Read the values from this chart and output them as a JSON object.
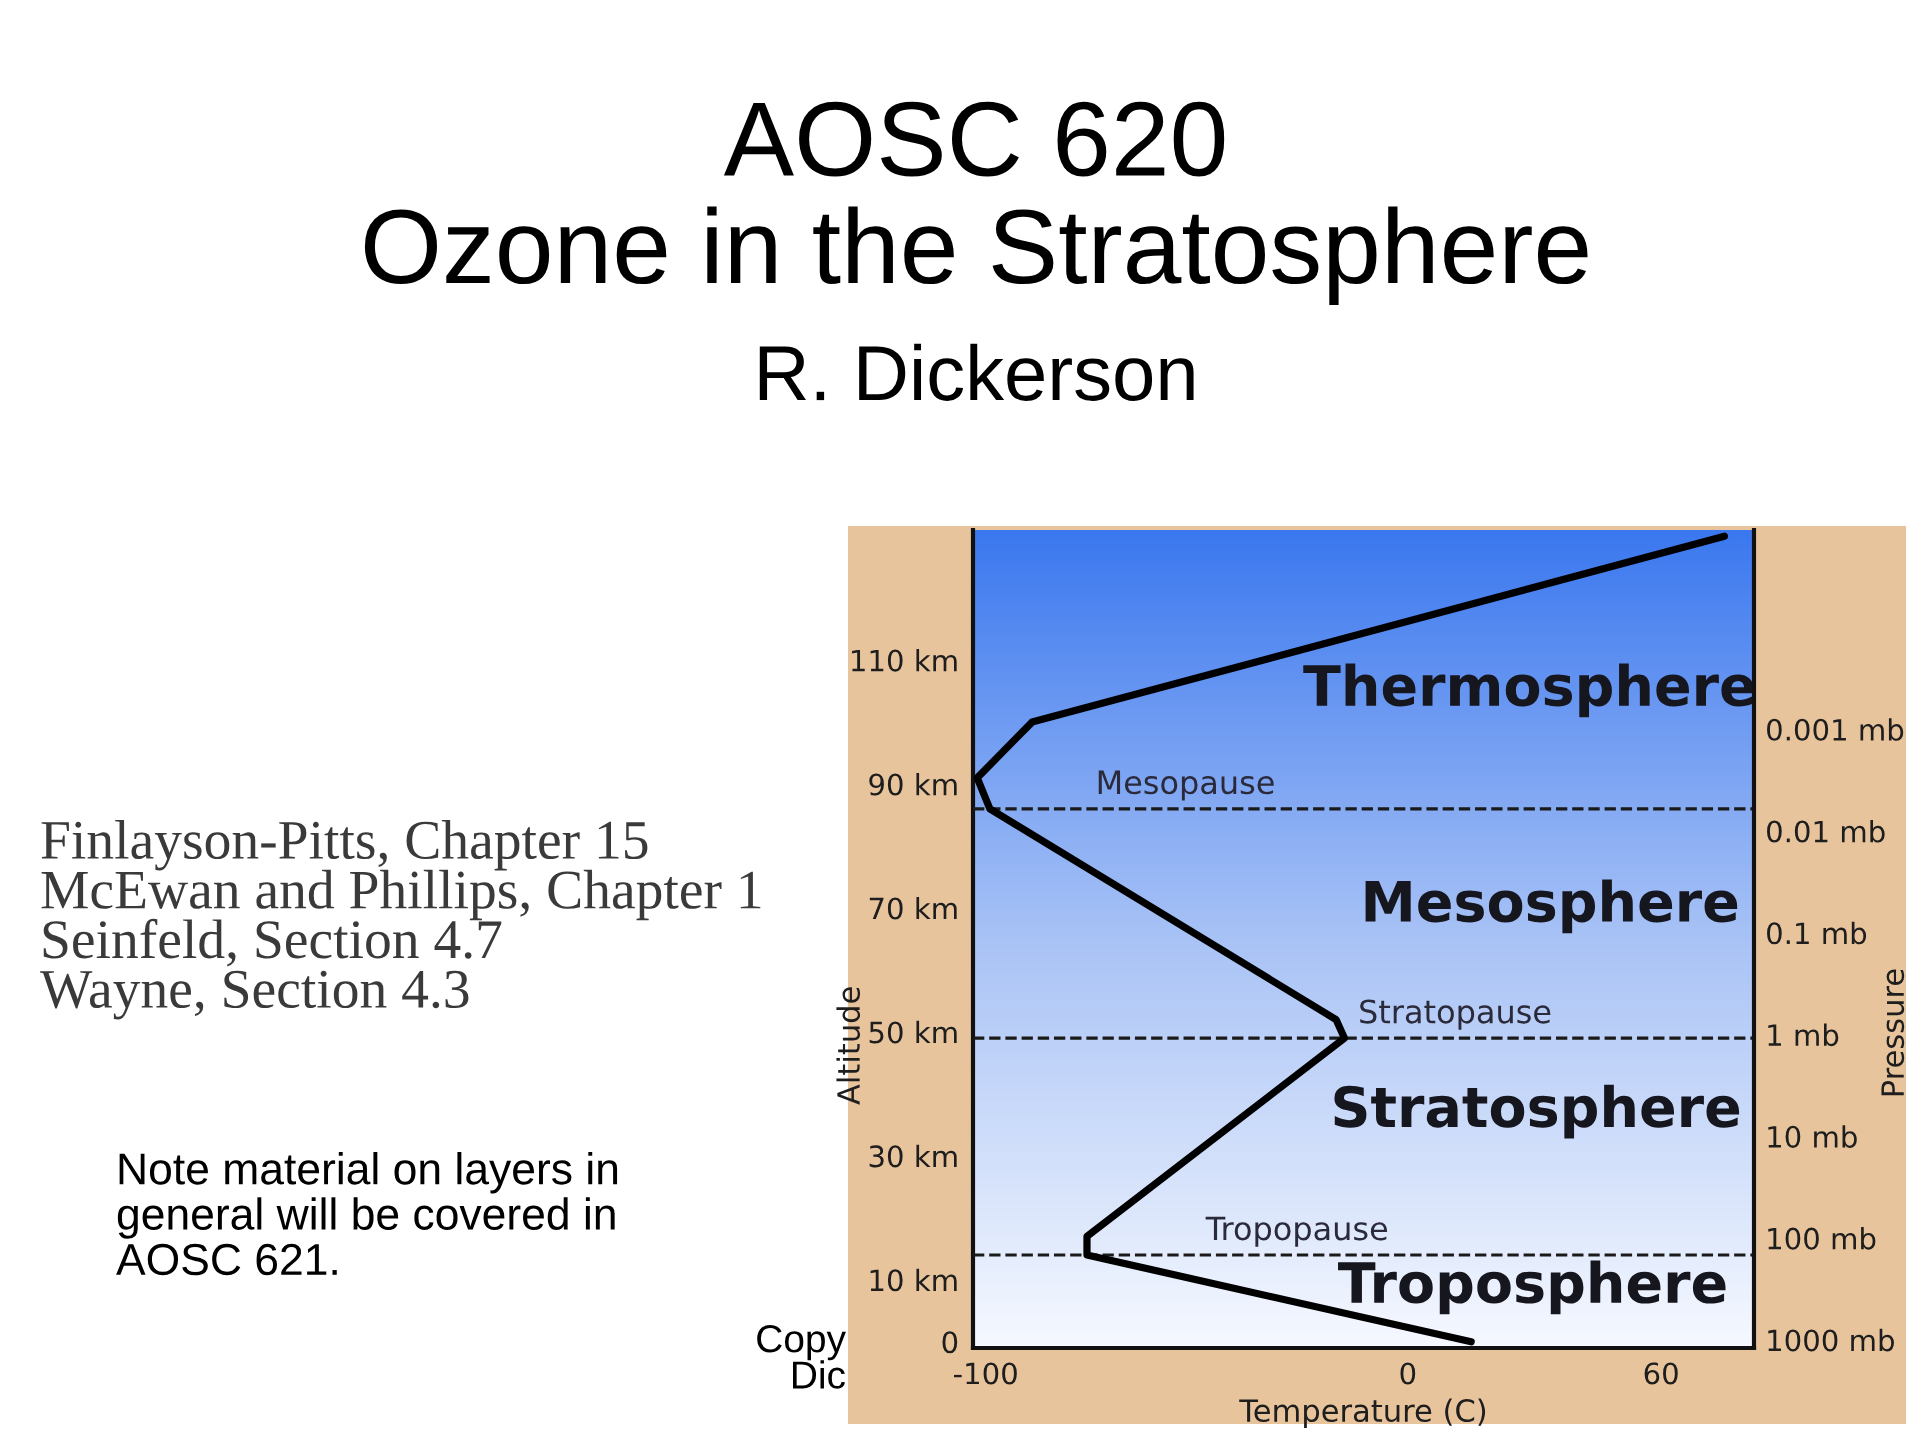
{
  "chart_data": {
    "type": "line",
    "title": "AOSC 620\nOzone in the Stratosphere",
    "subtitle": "R. Dickerson",
    "xlabel": "Temperature (C)",
    "ylabel": "Altitude",
    "y2label": "Pressure",
    "x": [
      15,
      -76,
      -76,
      -15,
      -17,
      -99,
      -102,
      -89,
      75
    ],
    "series": [
      {
        "color": "#000000",
        "values": [
          0,
          14,
          17,
          49,
          52,
          86,
          91,
          100,
          130
        ]
      }
    ],
    "xlim": [
      -103,
      82
    ],
    "xticks": [
      -100,
      0,
      60
    ],
    "ylim": [
      -1,
      131
    ],
    "yticks": [
      0,
      {
        "value": 10,
        "label": "10 km"
      },
      {
        "value": 30,
        "label": "30 km"
      },
      {
        "value": 50,
        "label": "50 km"
      },
      {
        "value": 70,
        "label": "70 km"
      },
      {
        "value": 90,
        "label": "90 km"
      },
      {
        "value": 110,
        "label": "110 km"
      }
    ],
    "log": "y2",
    "y2lim": [
      1200,
      1.1e-05
    ],
    "y2ticks": [
      {
        "value": 1000,
        "label": "1000 mb"
      },
      {
        "value": 100,
        "label": "100 mb"
      },
      {
        "value": 10,
        "label": "10 mb"
      },
      {
        "value": 1,
        "label": "1 mb"
      },
      {
        "value": 0.1,
        "label": "0.1 mb"
      },
      {
        "value": 0.01,
        "label": "0.01 mb"
      },
      {
        "value": 0.001,
        "label": "0.001 mb"
      }
    ],
    "ref_lines": [
      {
        "axis": "y",
        "value": 14,
        "label": "Tropopause",
        "color": "#1a1a1a",
        "line_style": "dashed"
      },
      {
        "axis": "y",
        "value": 49,
        "label": "Stratopause",
        "color": "#1a1a1a",
        "line_style": "dashed"
      },
      {
        "axis": "y",
        "value": 86,
        "label": "Mesopause",
        "color": "#1a1a1a",
        "line_style": "dashed"
      }
    ],
    "annotations": [
      "Troposphere",
      "Stratosphere",
      "Mesosphere",
      "Thermosphere",
      "Finlayson-Pitts, Chapter 15\nMcEwan and Phillips, Chapter 1\nSeinfeld, Section 4.7\nWayne, Section 4.3",
      "Note material on layers in\ngeneral will be covered in\nAOSC 621.",
      "Copy\nDic"
    ],
    "grid": false,
    "marker": "none",
    "line_style": "solid"
  }
}
